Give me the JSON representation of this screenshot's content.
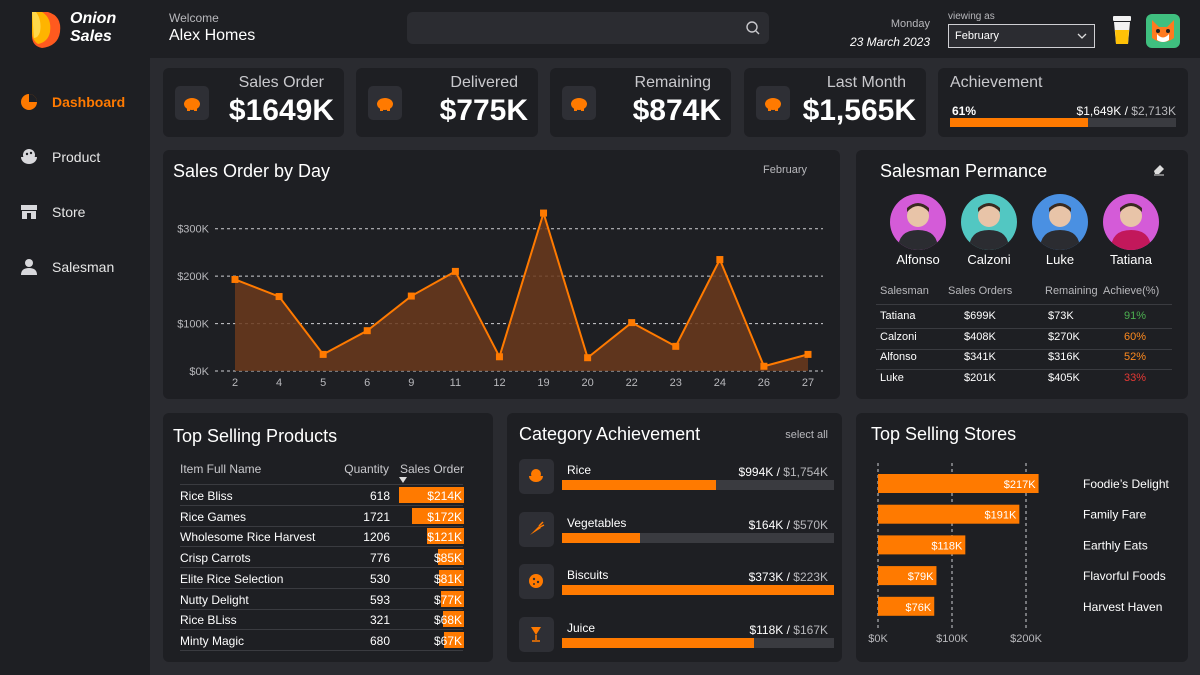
{
  "brand": {
    "line1": "Onion",
    "line2": "Sales"
  },
  "nav": [
    {
      "label": "Dashboard",
      "active": true,
      "icon": "pie-chart-icon"
    },
    {
      "label": "Product",
      "active": false,
      "icon": "bowl-icon"
    },
    {
      "label": "Store",
      "active": false,
      "icon": "store-icon"
    },
    {
      "label": "Salesman",
      "active": false,
      "icon": "user-icon"
    }
  ],
  "header": {
    "welcome": "Welcome",
    "user": "Alex Homes",
    "search_placeholder": "",
    "day": "Monday",
    "date": "23 March 2023",
    "viewing_label": "viewing as",
    "viewing_value": "February"
  },
  "kpis": [
    {
      "label": "Sales Order",
      "value": "$1649K"
    },
    {
      "label": "Delivered",
      "value": "$775K"
    },
    {
      "label": "Remaining",
      "value": "$874K"
    },
    {
      "label": "Last Month",
      "value": "$1,565K"
    }
  ],
  "achievement": {
    "label": "Achievement",
    "percent": "61%",
    "current": "$1,649K",
    "sep": "/",
    "target": "$2,713K",
    "fraction": 0.61
  },
  "sales_by_day": {
    "title": "Sales Order by Day",
    "filter": "February"
  },
  "chart_data": {
    "type": "area",
    "x": [
      "2",
      "4",
      "5",
      "6",
      "9",
      "11",
      "12",
      "19",
      "20",
      "22",
      "23",
      "24",
      "26",
      "27"
    ],
    "values": [
      193,
      157,
      35,
      85,
      158,
      210,
      30,
      333,
      28,
      102,
      52,
      235,
      10,
      35
    ],
    "yticks": [
      "$0K",
      "$100K",
      "$200K",
      "$300K"
    ],
    "ylim": [
      0,
      350
    ],
    "grid": true,
    "color": "#ff7a00"
  },
  "salesman": {
    "title": "Salesman Permance",
    "people": [
      "Alfonso",
      "Calzoni",
      "Luke",
      "Tatiana"
    ],
    "headers": [
      "Salesman",
      "Sales Orders",
      "Remaining",
      "Achieve(%)"
    ],
    "rows": [
      {
        "name": "Tatiana",
        "orders": "$699K",
        "remaining": "$73K",
        "achieve": "91%",
        "color": "#4caf50"
      },
      {
        "name": "Calzoni",
        "orders": "$408K",
        "remaining": "$270K",
        "achieve": "60%",
        "color": "#ff8a1f"
      },
      {
        "name": "Alfonso",
        "orders": "$341K",
        "remaining": "$316K",
        "achieve": "52%",
        "color": "#ff8a1f"
      },
      {
        "name": "Luke",
        "orders": "$201K",
        "remaining": "$405K",
        "achieve": "33%",
        "color": "#e53935"
      }
    ]
  },
  "top_products": {
    "title": "Top Selling Products",
    "headers": [
      "Item Full Name",
      "Quantity",
      "Sales Order"
    ],
    "rows": [
      {
        "name": "Rice Bliss",
        "qty": "618",
        "sales": "$214K",
        "v": 214
      },
      {
        "name": "Rice Games",
        "qty": "1721",
        "sales": "$172K",
        "v": 172
      },
      {
        "name": "Wholesome Rice Harvest",
        "qty": "1206",
        "sales": "$121K",
        "v": 121
      },
      {
        "name": "Crisp Carrots",
        "qty": "776",
        "sales": "$85K",
        "v": 85
      },
      {
        "name": "Elite Rice Selection",
        "qty": "530",
        "sales": "$81K",
        "v": 81
      },
      {
        "name": "Nutty Delight",
        "qty": "593",
        "sales": "$77K",
        "v": 77
      },
      {
        "name": "Rice BLiss",
        "qty": "321",
        "sales": "$68K",
        "v": 68
      },
      {
        "name": "Minty Magic",
        "qty": "680",
        "sales": "$67K",
        "v": 67
      }
    ]
  },
  "category": {
    "title": "Category Achievement",
    "select_all": "select all",
    "items": [
      {
        "name": "Rice",
        "value": "$994K",
        "sep": "/",
        "target": "$1,754K",
        "fraction": 0.567,
        "icon": "bowl-icon"
      },
      {
        "name": "Vegetables",
        "value": "$164K",
        "sep": "/",
        "target": "$570K",
        "fraction": 0.288,
        "icon": "carrot-icon"
      },
      {
        "name": "Biscuits",
        "value": "$373K",
        "sep": "/",
        "target": "$223K",
        "fraction": 1.0,
        "icon": "cookie-icon"
      },
      {
        "name": "Juice",
        "value": "$118K",
        "sep": "/",
        "target": "$167K",
        "fraction": 0.707,
        "icon": "glass-icon"
      }
    ]
  },
  "stores": {
    "title": "Top Selling Stores",
    "items": [
      {
        "name": "Foodie’s Delight",
        "label": "$217K",
        "v": 217
      },
      {
        "name": "Family Fare",
        "label": "$191K",
        "v": 191
      },
      {
        "name": "Earthly Eats",
        "label": "$118K",
        "v": 118
      },
      {
        "name": "Flavorful Foods",
        "label": "$79K",
        "v": 79
      },
      {
        "name": "Harvest Haven",
        "label": "$76K",
        "v": 76
      }
    ],
    "xticks": [
      "$0K",
      "$100K",
      "$200K"
    ],
    "xmax": 200
  }
}
